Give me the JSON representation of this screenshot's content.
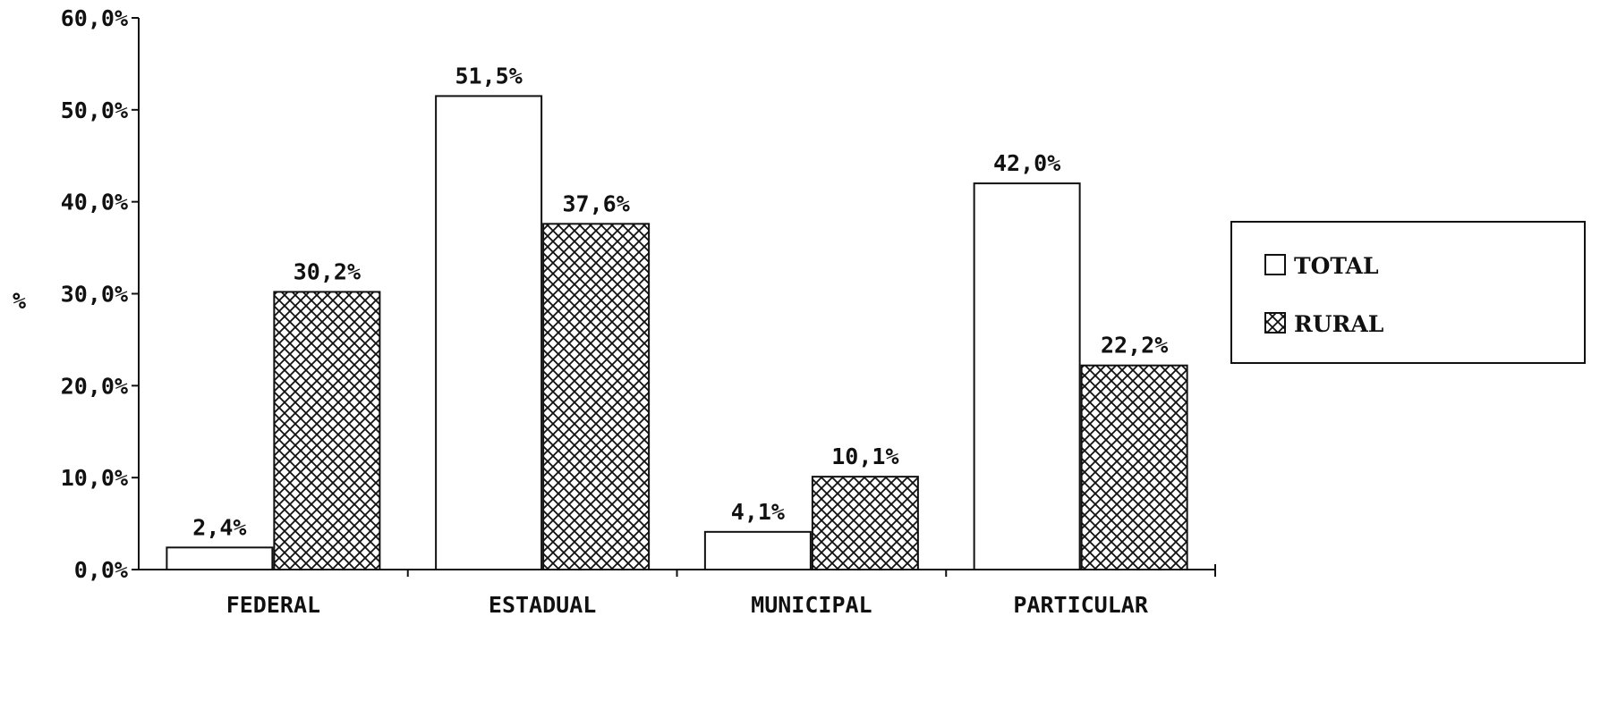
{
  "chart_data": {
    "type": "bar",
    "ylabel": "%",
    "ylim": [
      0,
      60
    ],
    "yticks": [
      "0,0%",
      "10,0%",
      "20,0%",
      "30,0%",
      "40,0%",
      "50,0%",
      "60,0%"
    ],
    "ytick_values": [
      0,
      10,
      20,
      30,
      40,
      50,
      60
    ],
    "categories": [
      "FEDERAL",
      "ESTADUAL",
      "MUNICIPAL",
      "PARTICULAR"
    ],
    "series": [
      {
        "name": "TOTAL",
        "fill": "#ffffff",
        "values": [
          2.4,
          51.5,
          4.1,
          42.0
        ],
        "labels": [
          "2,4%",
          "51,5%",
          "4,1%",
          "42,0%"
        ]
      },
      {
        "name": "RURAL",
        "fill": "crosshatch",
        "values": [
          30.2,
          37.6,
          10.1,
          22.2
        ],
        "labels": [
          "30,2%",
          "37,6%",
          "10,1%",
          "22,2%"
        ]
      }
    ],
    "legend": {
      "position": "right"
    },
    "grid": false,
    "colors": {
      "ink": "#111111",
      "background": "#ffffff"
    }
  }
}
